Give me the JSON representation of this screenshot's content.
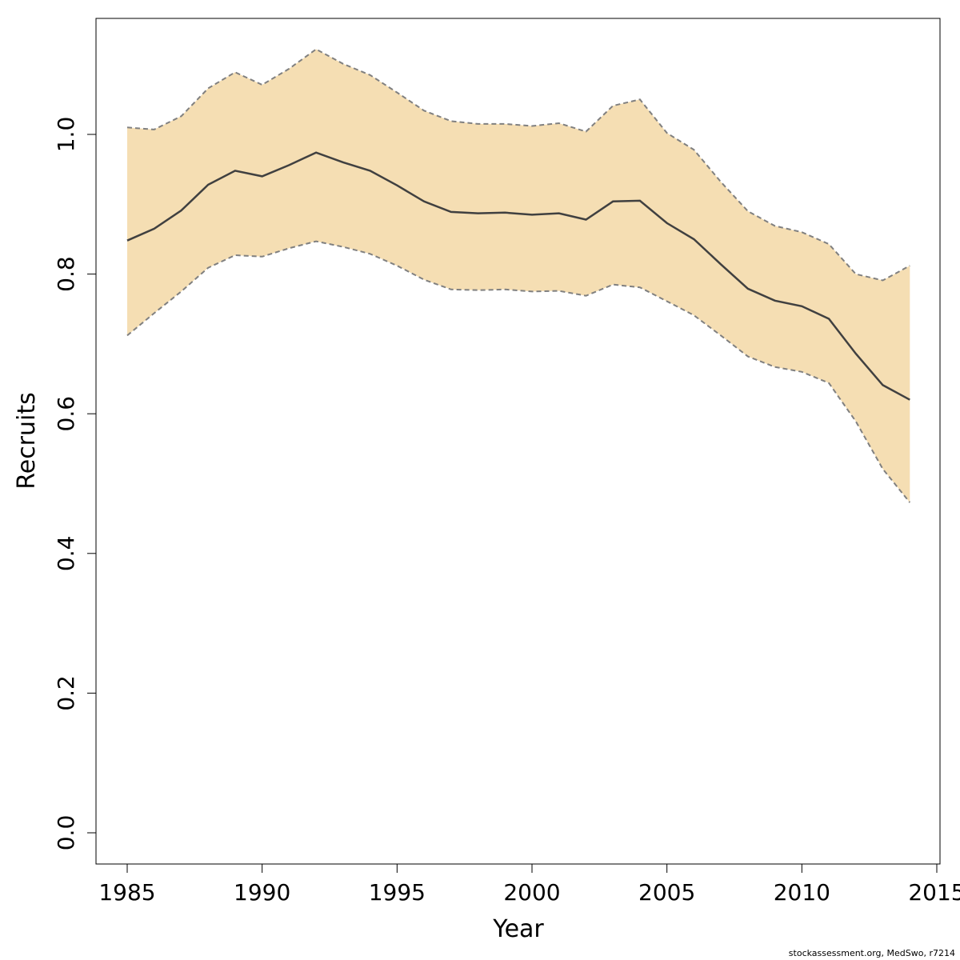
{
  "chart_data": {
    "type": "area",
    "xlabel": "Year",
    "ylabel": "Recruits",
    "xlim": [
      1985,
      2015
    ],
    "ylim": [
      0.0,
      1.2
    ],
    "x_ticks": [
      1985,
      1990,
      1995,
      2000,
      2005,
      2010,
      2015
    ],
    "y_ticks": [
      "0.0",
      "0.2",
      "0.4",
      "0.6",
      "0.8",
      "1.0"
    ],
    "colors": {
      "band": "#f5deb3",
      "line": "#404040",
      "bounds": "#808080"
    },
    "x": [
      1985,
      1986,
      1987,
      1988,
      1989,
      1990,
      1991,
      1992,
      1993,
      1994,
      1995,
      1996,
      1997,
      1998,
      1999,
      2000,
      2001,
      2002,
      2003,
      2004,
      2005,
      2006,
      2007,
      2008,
      2009,
      2010,
      2011,
      2012,
      2013,
      2014
    ],
    "series": [
      {
        "values": [
          0.848,
          0.865,
          0.891,
          0.928,
          0.948,
          0.94,
          0.956,
          0.974,
          0.96,
          0.948,
          0.927,
          0.904,
          0.889,
          0.887,
          0.888,
          0.885,
          0.887,
          0.878,
          0.904,
          0.905,
          0.873,
          0.85,
          0.814,
          0.779,
          0.762,
          0.754,
          0.736,
          0.686,
          0.641,
          0.62
        ]
      },
      {
        "values": [
          0.712,
          0.744,
          0.775,
          0.809,
          0.827,
          0.825,
          0.837,
          0.847,
          0.839,
          0.829,
          0.812,
          0.792,
          0.778,
          0.777,
          0.778,
          0.775,
          0.776,
          0.769,
          0.785,
          0.781,
          0.761,
          0.741,
          0.712,
          0.682,
          0.667,
          0.66,
          0.644,
          0.589,
          0.521,
          0.473
        ]
      },
      {
        "values": [
          1.01,
          1.007,
          1.026,
          1.066,
          1.089,
          1.071,
          1.094,
          1.122,
          1.101,
          1.085,
          1.06,
          1.034,
          1.019,
          1.015,
          1.015,
          1.012,
          1.016,
          1.004,
          1.041,
          1.05,
          1.002,
          0.978,
          0.932,
          0.89,
          0.869,
          0.86,
          0.843,
          0.8,
          0.791,
          0.812
        ]
      }
    ]
  },
  "footer": {
    "text": "stockassessment.org, MedSwo, r7214"
  }
}
